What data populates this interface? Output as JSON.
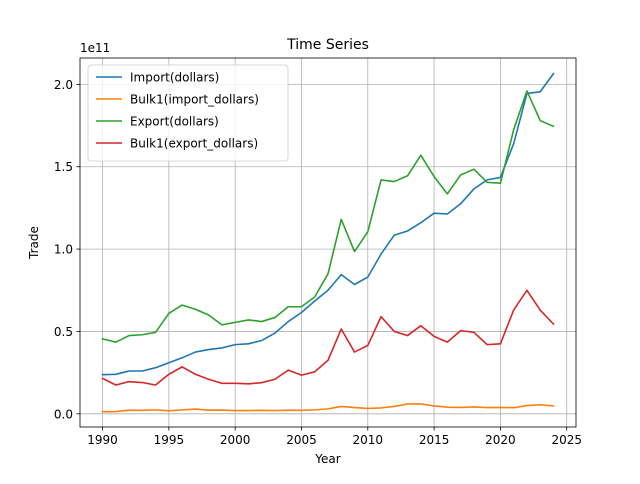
{
  "chart_data": {
    "type": "line",
    "title": "Time Series",
    "xlabel": "Year",
    "ylabel": "Trade",
    "y_multiplier_label": "1e11",
    "y_scale_factor": 100000000000,
    "xlim": [
      1988.3,
      2025.7
    ],
    "ylim": [
      -8000000000,
      216000000000
    ],
    "x_ticks": [
      1990,
      1995,
      2000,
      2005,
      2010,
      2015,
      2020,
      2025
    ],
    "x_tick_labels": [
      "1990",
      "1995",
      "2000",
      "2005",
      "2010",
      "2015",
      "2020",
      "2025"
    ],
    "y_ticks": [
      0,
      50000000000,
      100000000000,
      150000000000,
      200000000000
    ],
    "y_tick_labels": [
      "0.0",
      "0.5",
      "1.0",
      "1.5",
      "2.0"
    ],
    "grid": true,
    "legend_position": "top-left",
    "x": [
      1990,
      1991,
      1992,
      1993,
      1994,
      1995,
      1996,
      1997,
      1998,
      1999,
      2000,
      2001,
      2002,
      2003,
      2004,
      2005,
      2006,
      2007,
      2008,
      2009,
      2010,
      2011,
      2012,
      2013,
      2014,
      2015,
      2016,
      2017,
      2018,
      2019,
      2020,
      2021,
      2022,
      2023,
      2024
    ],
    "series": [
      {
        "name": "Import(dollars)",
        "color": "#1f77b4",
        "values": [
          23800000000,
          24000000000,
          26000000000,
          26000000000,
          28000000000,
          31000000000,
          34000000000,
          37500000000,
          39000000000,
          40000000000,
          42000000000,
          42500000000,
          44500000000,
          49000000000,
          56000000000,
          61500000000,
          68500000000,
          75000000000,
          84500000000,
          78500000000,
          83000000000,
          97000000000,
          108500000000,
          111000000000,
          116000000000,
          121800000000,
          121300000000,
          127500000000,
          136500000000,
          142000000000,
          143500000000,
          164000000000,
          194500000000,
          195500000000,
          206500000000
        ]
      },
      {
        "name": "Bulk1(import_dollars)",
        "color": "#ff7f0e",
        "values": [
          1300000000,
          1400000000,
          2200000000,
          2100000000,
          2400000000,
          1800000000,
          2400000000,
          2900000000,
          2200000000,
          2300000000,
          2000000000,
          2000000000,
          2100000000,
          2000000000,
          2200000000,
          2100000000,
          2400000000,
          3000000000,
          4500000000,
          3800000000,
          3300000000,
          3600000000,
          4500000000,
          6000000000,
          6000000000,
          4800000000,
          4000000000,
          3900000000,
          4200000000,
          3800000000,
          3900000000,
          3700000000,
          5000000000,
          5500000000,
          4800000000
        ]
      },
      {
        "name": "Export(dollars)",
        "color": "#2ca02c",
        "values": [
          45500000000,
          43500000000,
          47500000000,
          48000000000,
          49500000000,
          61000000000,
          66000000000,
          63500000000,
          60000000000,
          54000000000,
          55500000000,
          57000000000,
          56000000000,
          58500000000,
          65000000000,
          65000000000,
          71000000000,
          85000000000,
          118000000000,
          98500000000,
          110500000000,
          142000000000,
          141000000000,
          144500000000,
          157000000000,
          144000000000,
          133500000000,
          145000000000,
          148500000000,
          140500000000,
          140000000000,
          172500000000,
          196000000000,
          178000000000,
          174500000000
        ]
      },
      {
        "name": "Bulk1(export_dollars)",
        "color": "#d62728",
        "values": [
          21500000000,
          17500000000,
          19500000000,
          19000000000,
          17500000000,
          24000000000,
          28500000000,
          24000000000,
          21000000000,
          18500000000,
          18500000000,
          18200000000,
          18900000000,
          21000000000,
          26500000000,
          23500000000,
          25500000000,
          32500000000,
          51500000000,
          37500000000,
          41500000000,
          59000000000,
          50000000000,
          47500000000,
          53500000000,
          47000000000,
          43500000000,
          50500000000,
          49500000000,
          42000000000,
          42500000000,
          63000000000,
          75000000000,
          63000000000,
          54500000000
        ]
      }
    ]
  }
}
